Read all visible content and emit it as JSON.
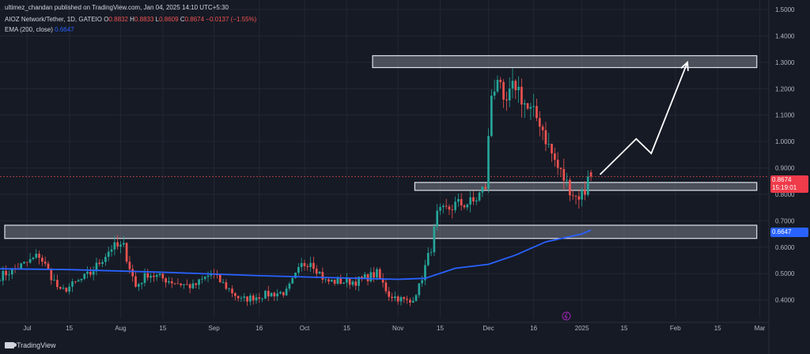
{
  "header": {
    "published_by": "ultimez_chandan published on TradingView.com, Jan 04, 2025 14:10 UTC+5:30",
    "symbol": "AIOZ Network/Tether, 1D, GATEIO",
    "open_label": "O",
    "open": "0.8832",
    "high_label": "H",
    "high": "0.8833",
    "low_label": "L",
    "low": "0.8609",
    "close_label": "C",
    "close": "0.8674",
    "change": "−0.0137 (−1.55%)",
    "ema_label": "EMA (200, close)",
    "ema_value": "0.6647"
  },
  "price_tags": {
    "last_price": "0.8674",
    "countdown": "15:19:01",
    "ema": "0.6647"
  },
  "footer": {
    "brand": "TradingView"
  },
  "colors": {
    "background": "#161a25",
    "up": "#26a69a",
    "down": "#ef5350",
    "ema": "#2962ff",
    "zone_fill": "#787b86",
    "zone_border": "#e0e3eb",
    "arrow": "#ffffff"
  },
  "chart_data": {
    "type": "candlestick",
    "title": "AIOZ Network/Tether, 1D, GATEIO",
    "y_axis_side": "right",
    "ylim": [
      0.33,
      1.5
    ],
    "y_ticks": [
      "0.4000",
      "0.5000",
      "0.6000",
      "0.7000",
      "0.8000",
      "0.9000",
      "1.0000",
      "1.1000",
      "1.2000",
      "1.3000",
      "1.4000",
      "1.5000"
    ],
    "x_range": [
      "2024-06-22",
      "2025-03-04"
    ],
    "x_ticks": [
      {
        "label": "Jul",
        "date": "2024-07-01"
      },
      {
        "label": "15",
        "date": "2024-07-15"
      },
      {
        "label": "Aug",
        "date": "2024-08-01"
      },
      {
        "label": "15",
        "date": "2024-08-15"
      },
      {
        "label": "Sep",
        "date": "2024-09-01"
      },
      {
        "label": "16",
        "date": "2024-09-16"
      },
      {
        "label": "Oct",
        "date": "2024-10-01"
      },
      {
        "label": "15",
        "date": "2024-10-15"
      },
      {
        "label": "Nov",
        "date": "2024-11-01"
      },
      {
        "label": "15",
        "date": "2024-11-15"
      },
      {
        "label": "Dec",
        "date": "2024-12-01"
      },
      {
        "label": "16",
        "date": "2024-12-16"
      },
      {
        "label": "2025",
        "date": "2025-01-01"
      },
      {
        "label": "15",
        "date": "2025-01-15"
      },
      {
        "label": "Feb",
        "date": "2025-02-01"
      },
      {
        "label": "15",
        "date": "2025-02-15"
      },
      {
        "label": "Mar",
        "date": "2025-03-01"
      }
    ],
    "grid": true,
    "zones": [
      {
        "start": "2024-10-22",
        "end": "2025-02-28",
        "low": 1.28,
        "high": 1.325
      },
      {
        "start": "2024-11-05",
        "end": "2025-02-28",
        "low": 0.815,
        "high": 0.845
      },
      {
        "start": "2024-06-22",
        "end": "2025-02-28",
        "low": 0.633,
        "high": 0.683
      }
    ],
    "projection": [
      {
        "date": "2025-01-07",
        "value": 0.875
      },
      {
        "date": "2025-01-19",
        "value": 1.01
      },
      {
        "date": "2025-01-24",
        "value": 0.955
      },
      {
        "date": "2025-02-05",
        "value": 1.3
      }
    ],
    "last_price_line": 0.8674,
    "series": [
      {
        "name": "EMA (200, close)",
        "type": "line",
        "points": [
          [
            "2024-06-22",
            0.518
          ],
          [
            "2024-07-15",
            0.515
          ],
          [
            "2024-08-15",
            0.505
          ],
          [
            "2024-09-16",
            0.492
          ],
          [
            "2024-10-15",
            0.483
          ],
          [
            "2024-11-01",
            0.478
          ],
          [
            "2024-11-10",
            0.482
          ],
          [
            "2024-11-20",
            0.52
          ],
          [
            "2024-12-01",
            0.535
          ],
          [
            "2024-12-10",
            0.57
          ],
          [
            "2024-12-20",
            0.62
          ],
          [
            "2025-01-01",
            0.65
          ],
          [
            "2025-01-04",
            0.6647
          ]
        ]
      },
      {
        "name": "AIOZ/USDT",
        "type": "candlestick",
        "anchors": [
          [
            "2024-06-22",
            0.49
          ],
          [
            "2024-07-01",
            0.54
          ],
          [
            "2024-07-05",
            0.57
          ],
          [
            "2024-07-12",
            0.43
          ],
          [
            "2024-07-18",
            0.47
          ],
          [
            "2024-07-22",
            0.5
          ],
          [
            "2024-07-29",
            0.6
          ],
          [
            "2024-08-02",
            0.6
          ],
          [
            "2024-08-06",
            0.45
          ],
          [
            "2024-08-10",
            0.5
          ],
          [
            "2024-08-18",
            0.47
          ],
          [
            "2024-08-25",
            0.45
          ],
          [
            "2024-08-31",
            0.5
          ],
          [
            "2024-09-05",
            0.45
          ],
          [
            "2024-09-10",
            0.4
          ],
          [
            "2024-09-18",
            0.42
          ],
          [
            "2024-09-25",
            0.43
          ],
          [
            "2024-09-30",
            0.53
          ],
          [
            "2024-10-03",
            0.55
          ],
          [
            "2024-10-08",
            0.47
          ],
          [
            "2024-10-18",
            0.47
          ],
          [
            "2024-10-25",
            0.5
          ],
          [
            "2024-10-29",
            0.42
          ],
          [
            "2024-11-05",
            0.39
          ],
          [
            "2024-11-08",
            0.45
          ],
          [
            "2024-11-12",
            0.6
          ],
          [
            "2024-11-14",
            0.72
          ],
          [
            "2024-11-20",
            0.76
          ],
          [
            "2024-11-26",
            0.77
          ],
          [
            "2024-11-30",
            0.83
          ],
          [
            "2024-12-02",
            1.18
          ],
          [
            "2024-12-04",
            1.25
          ],
          [
            "2024-12-06",
            1.12
          ],
          [
            "2024-12-10",
            1.22
          ],
          [
            "2024-12-14",
            1.12
          ],
          [
            "2024-12-18",
            1.08
          ],
          [
            "2024-12-21",
            0.98
          ],
          [
            "2024-12-24",
            0.9
          ],
          [
            "2024-12-27",
            0.84
          ],
          [
            "2024-12-30",
            0.79
          ],
          [
            "2025-01-02",
            0.81
          ],
          [
            "2025-01-03",
            0.883
          ],
          [
            "2025-01-04",
            0.8674
          ]
        ]
      }
    ]
  }
}
